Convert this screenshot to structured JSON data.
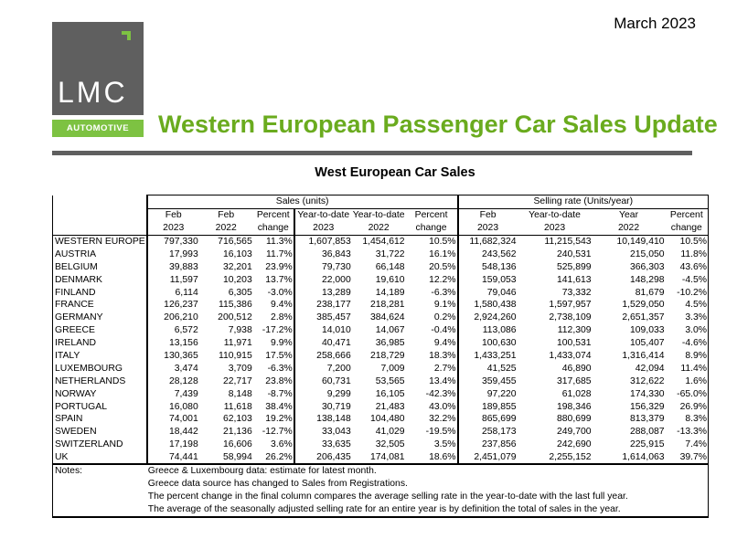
{
  "header": {
    "date": "March 2023",
    "logo_main": "LMC",
    "logo_sub": "AUTOMOTIVE",
    "title": "Western European Passenger Car Sales Update"
  },
  "table": {
    "title": "West European Car Sales",
    "group_sales": "Sales (units)",
    "group_rate": "Selling rate (Units/year)",
    "columns": [
      [
        "Feb",
        "2023"
      ],
      [
        "Feb",
        "2022"
      ],
      [
        "Percent",
        "change"
      ],
      [
        "Year-to-date",
        "2023"
      ],
      [
        "Year-to-date",
        "2022"
      ],
      [
        "Percent",
        "change"
      ],
      [
        "Feb",
        "2023"
      ],
      [
        "Year-to-date",
        "2023"
      ],
      [
        "Year",
        "2022"
      ],
      [
        "Percent",
        "change"
      ]
    ],
    "rows": [
      [
        "WESTERN EUROPE",
        "797,330",
        "716,565",
        "11.3%",
        "1,607,853",
        "1,454,612",
        "10.5%",
        "11,682,324",
        "11,215,543",
        "10,149,410",
        "10.5%"
      ],
      [
        "AUSTRIA",
        "17,993",
        "16,103",
        "11.7%",
        "36,843",
        "31,722",
        "16.1%",
        "243,562",
        "240,531",
        "215,050",
        "11.8%"
      ],
      [
        "BELGIUM",
        "39,883",
        "32,201",
        "23.9%",
        "79,730",
        "66,148",
        "20.5%",
        "548,136",
        "525,899",
        "366,303",
        "43.6%"
      ],
      [
        "DENMARK",
        "11,597",
        "10,203",
        "13.7%",
        "22,000",
        "19,610",
        "12.2%",
        "159,053",
        "141,613",
        "148,298",
        "-4.5%"
      ],
      [
        "FINLAND",
        "6,114",
        "6,305",
        "-3.0%",
        "13,289",
        "14,189",
        "-6.3%",
        "79,046",
        "73,332",
        "81,679",
        "-10.2%"
      ],
      [
        "FRANCE",
        "126,237",
        "115,386",
        "9.4%",
        "238,177",
        "218,281",
        "9.1%",
        "1,580,438",
        "1,597,957",
        "1,529,050",
        "4.5%"
      ],
      [
        "GERMANY",
        "206,210",
        "200,512",
        "2.8%",
        "385,457",
        "384,624",
        "0.2%",
        "2,924,260",
        "2,738,109",
        "2,651,357",
        "3.3%"
      ],
      [
        "GREECE",
        "6,572",
        "7,938",
        "-17.2%",
        "14,010",
        "14,067",
        "-0.4%",
        "113,086",
        "112,309",
        "109,033",
        "3.0%"
      ],
      [
        "IRELAND",
        "13,156",
        "11,971",
        "9.9%",
        "40,471",
        "36,985",
        "9.4%",
        "100,630",
        "100,531",
        "105,407",
        "-4.6%"
      ],
      [
        "ITALY",
        "130,365",
        "110,915",
        "17.5%",
        "258,666",
        "218,729",
        "18.3%",
        "1,433,251",
        "1,433,074",
        "1,316,414",
        "8.9%"
      ],
      [
        "LUXEMBOURG",
        "3,474",
        "3,709",
        "-6.3%",
        "7,200",
        "7,009",
        "2.7%",
        "41,525",
        "46,890",
        "42,094",
        "11.4%"
      ],
      [
        "NETHERLANDS",
        "28,128",
        "22,717",
        "23.8%",
        "60,731",
        "53,565",
        "13.4%",
        "359,455",
        "317,685",
        "312,622",
        "1.6%"
      ],
      [
        "NORWAY",
        "7,439",
        "8,148",
        "-8.7%",
        "9,299",
        "16,105",
        "-42.3%",
        "97,220",
        "61,028",
        "174,330",
        "-65.0%"
      ],
      [
        "PORTUGAL",
        "16,080",
        "11,618",
        "38.4%",
        "30,719",
        "21,483",
        "43.0%",
        "189,855",
        "198,346",
        "156,329",
        "26.9%"
      ],
      [
        "SPAIN",
        "74,001",
        "62,103",
        "19.2%",
        "138,148",
        "104,480",
        "32.2%",
        "865,699",
        "880,699",
        "813,379",
        "8.3%"
      ],
      [
        "SWEDEN",
        "18,442",
        "21,136",
        "-12.7%",
        "33,043",
        "41,029",
        "-19.5%",
        "258,173",
        "249,700",
        "288,087",
        "-13.3%"
      ],
      [
        "SWITZERLAND",
        "17,198",
        "16,606",
        "3.6%",
        "33,635",
        "32,505",
        "3.5%",
        "237,856",
        "242,690",
        "225,915",
        "7.4%"
      ],
      [
        "UK",
        "74,441",
        "58,994",
        "26.2%",
        "206,435",
        "174,081",
        "18.6%",
        "2,451,079",
        "2,255,152",
        "1,614,063",
        "39.7%"
      ]
    ],
    "notes_label": "Notes:",
    "notes": [
      "Greece & Luxembourg data: estimate for latest month.",
      "Greece data source has changed to Sales from Registrations.",
      "The percent change in the final column compares the average selling rate in the year-to-date with the last full year.",
      "The average of the seasonally adjusted selling rate for an entire year is by definition the total of sales in the year."
    ]
  }
}
